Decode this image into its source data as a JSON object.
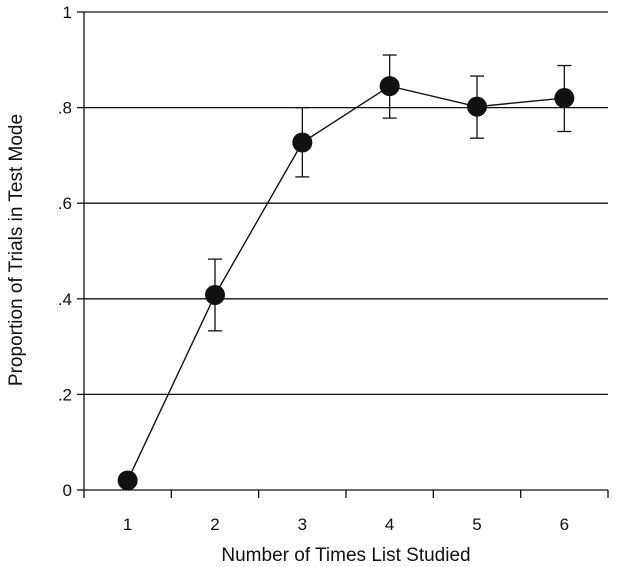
{
  "chart_data": {
    "type": "line",
    "title": "",
    "xlabel": "Number of Times List Studied",
    "ylabel": "Proportion of Trials in Test Mode",
    "x": [
      1,
      2,
      3,
      4,
      5,
      6
    ],
    "x_tick_labels": [
      "1",
      "2",
      "3",
      "4",
      "5",
      "6"
    ],
    "y_ticks": [
      0,
      0.2,
      0.4,
      0.6,
      0.8,
      1
    ],
    "y_tick_labels": [
      "0",
      ".2",
      ".4",
      ".6",
      ".8",
      "1"
    ],
    "ylim": [
      0,
      1
    ],
    "xlim": [
      0.5,
      6.5
    ],
    "grid": "horizontal",
    "legend": "none",
    "series": [
      {
        "values": [
          0.02,
          0.408,
          0.727,
          0.845,
          0.802,
          0.82
        ],
        "error_upper": [
          null,
          0.483,
          0.8,
          0.91,
          0.866,
          0.888
        ],
        "error_lower": [
          null,
          0.333,
          0.655,
          0.778,
          0.736,
          0.75
        ],
        "color": "#111111"
      }
    ]
  }
}
